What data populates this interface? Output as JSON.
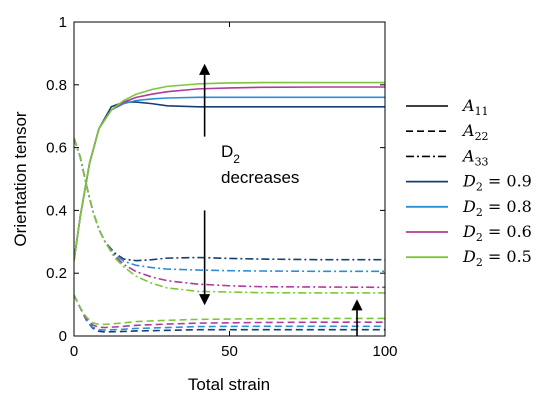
{
  "chart_data": {
    "type": "line",
    "title": "",
    "xlabel": "Total strain",
    "ylabel": "Orientation tensor",
    "xlim": [
      0,
      100
    ],
    "ylim": [
      0,
      1
    ],
    "xticks": [
      0,
      50,
      100
    ],
    "xtick_labels": [
      "0",
      "50",
      "100"
    ],
    "yticks": [
      0,
      0.2,
      0.4,
      0.6,
      0.8,
      1
    ],
    "ytick_labels": [
      "0",
      "0.2",
      "0.4",
      "0.6",
      "0.8",
      "1"
    ],
    "grid": false,
    "legend_position": "right, outside plot",
    "legend": {
      "components": [
        {
          "base": "A",
          "sub": "11",
          "linestyle": "solid"
        },
        {
          "base": "A",
          "sub": "22",
          "linestyle": "dashed"
        },
        {
          "base": "A",
          "sub": "33",
          "linestyle": "dashdot"
        }
      ],
      "parameter_entries": [
        {
          "base": "D",
          "sub": "2",
          "eq": " = 0.9",
          "color": "#1a3e72"
        },
        {
          "base": "D",
          "sub": "2",
          "eq": " = 0.8",
          "color": "#2b8fd6"
        },
        {
          "base": "D",
          "sub": "2",
          "eq": " = 0.6",
          "color": "#b03b9a"
        },
        {
          "base": "D",
          "sub": "2",
          "eq": " = 0.5",
          "color": "#7dc63a"
        }
      ]
    },
    "series": [
      {
        "label": "A11, D2 = 0.9",
        "color": "#1a3e72",
        "linestyle": "solid",
        "x": [
          0,
          2,
          5,
          8,
          12,
          16,
          20,
          25,
          30,
          40,
          50,
          60,
          80,
          100
        ],
        "y": [
          0.24,
          0.38,
          0.55,
          0.66,
          0.73,
          0.745,
          0.745,
          0.74,
          0.733,
          0.73,
          0.73,
          0.73,
          0.73,
          0.73
        ]
      },
      {
        "label": "A11, D2 = 0.8",
        "color": "#2b8fd6",
        "linestyle": "solid",
        "x": [
          0,
          2,
          5,
          8,
          12,
          16,
          20,
          25,
          30,
          40,
          50,
          60,
          80,
          100
        ],
        "y": [
          0.24,
          0.38,
          0.55,
          0.66,
          0.72,
          0.74,
          0.75,
          0.755,
          0.758,
          0.76,
          0.76,
          0.76,
          0.76,
          0.76
        ]
      },
      {
        "label": "A11, D2 = 0.6",
        "color": "#b03b9a",
        "linestyle": "solid",
        "x": [
          0,
          2,
          5,
          8,
          12,
          16,
          20,
          25,
          30,
          40,
          50,
          60,
          80,
          100
        ],
        "y": [
          0.24,
          0.38,
          0.55,
          0.66,
          0.72,
          0.745,
          0.76,
          0.77,
          0.778,
          0.787,
          0.79,
          0.792,
          0.793,
          0.793
        ]
      },
      {
        "label": "A11, D2 = 0.5",
        "color": "#7dc63a",
        "linestyle": "solid",
        "x": [
          0,
          2,
          5,
          8,
          12,
          16,
          20,
          25,
          30,
          40,
          50,
          60,
          80,
          100
        ],
        "y": [
          0.24,
          0.38,
          0.55,
          0.66,
          0.72,
          0.75,
          0.77,
          0.785,
          0.795,
          0.803,
          0.806,
          0.807,
          0.807,
          0.807
        ]
      },
      {
        "label": "A22, D2 = 0.9",
        "color": "#1a3e72",
        "linestyle": "dashed",
        "x": [
          0,
          2,
          4,
          6,
          8,
          10,
          15,
          20,
          30,
          40,
          60,
          80,
          100
        ],
        "y": [
          0.13,
          0.09,
          0.05,
          0.025,
          0.015,
          0.013,
          0.014,
          0.016,
          0.018,
          0.02,
          0.02,
          0.02,
          0.02
        ]
      },
      {
        "label": "A22, D2 = 0.8",
        "color": "#2b8fd6",
        "linestyle": "dashed",
        "x": [
          0,
          2,
          4,
          6,
          8,
          10,
          15,
          20,
          30,
          40,
          60,
          80,
          100
        ],
        "y": [
          0.13,
          0.09,
          0.05,
          0.028,
          0.02,
          0.019,
          0.021,
          0.024,
          0.027,
          0.03,
          0.031,
          0.031,
          0.031
        ]
      },
      {
        "label": "A22, D2 = 0.6",
        "color": "#b03b9a",
        "linestyle": "dashed",
        "x": [
          0,
          2,
          4,
          6,
          8,
          10,
          15,
          20,
          30,
          40,
          60,
          80,
          100
        ],
        "y": [
          0.13,
          0.09,
          0.055,
          0.035,
          0.028,
          0.027,
          0.03,
          0.034,
          0.038,
          0.041,
          0.043,
          0.044,
          0.044
        ]
      },
      {
        "label": "A22, D2 = 0.5",
        "color": "#7dc63a",
        "linestyle": "dashed",
        "x": [
          0,
          2,
          4,
          6,
          8,
          10,
          15,
          20,
          30,
          40,
          60,
          80,
          100
        ],
        "y": [
          0.13,
          0.09,
          0.06,
          0.042,
          0.037,
          0.037,
          0.041,
          0.046,
          0.05,
          0.053,
          0.055,
          0.056,
          0.056
        ]
      },
      {
        "label": "A33, D2 = 0.9",
        "color": "#1a3e72",
        "linestyle": "dashdot",
        "x": [
          0,
          2,
          4,
          6,
          8,
          10,
          13,
          16,
          20,
          25,
          30,
          40,
          50,
          60,
          80,
          100
        ],
        "y": [
          0.63,
          0.57,
          0.48,
          0.4,
          0.34,
          0.3,
          0.265,
          0.245,
          0.24,
          0.243,
          0.248,
          0.25,
          0.247,
          0.245,
          0.243,
          0.243
        ]
      },
      {
        "label": "A33, D2 = 0.8",
        "color": "#2b8fd6",
        "linestyle": "dashdot",
        "x": [
          0,
          2,
          4,
          6,
          8,
          10,
          13,
          16,
          20,
          25,
          30,
          40,
          50,
          60,
          80,
          100
        ],
        "y": [
          0.63,
          0.57,
          0.48,
          0.4,
          0.34,
          0.3,
          0.26,
          0.238,
          0.225,
          0.218,
          0.213,
          0.21,
          0.208,
          0.207,
          0.206,
          0.206
        ]
      },
      {
        "label": "A33, D2 = 0.6",
        "color": "#b03b9a",
        "linestyle": "dashdot",
        "x": [
          0,
          2,
          4,
          6,
          8,
          10,
          13,
          16,
          20,
          25,
          30,
          40,
          50,
          60,
          80,
          100
        ],
        "y": [
          0.63,
          0.57,
          0.48,
          0.4,
          0.34,
          0.3,
          0.255,
          0.228,
          0.205,
          0.188,
          0.176,
          0.165,
          0.16,
          0.157,
          0.156,
          0.155
        ]
      },
      {
        "label": "A33, D2 = 0.5",
        "color": "#7dc63a",
        "linestyle": "dashdot",
        "x": [
          0,
          2,
          4,
          6,
          8,
          10,
          13,
          16,
          20,
          25,
          30,
          40,
          50,
          60,
          80,
          100
        ],
        "y": [
          0.63,
          0.57,
          0.48,
          0.4,
          0.34,
          0.3,
          0.25,
          0.22,
          0.19,
          0.168,
          0.153,
          0.142,
          0.14,
          0.138,
          0.137,
          0.137
        ]
      }
    ],
    "annotations": [
      {
        "text_base": "D",
        "text_sub": "2",
        "text_line2": "decreases"
      }
    ],
    "arrows": [
      {
        "name": "upper-arrow",
        "x": 42,
        "y_from": 0.635,
        "y_to": 0.86
      },
      {
        "name": "middle-arrow",
        "x": 42,
        "y_from": 0.4,
        "y_to": 0.105
      },
      {
        "name": "lower-arrow",
        "x": 91,
        "y_from": 0.0,
        "y_to": 0.11
      }
    ]
  }
}
